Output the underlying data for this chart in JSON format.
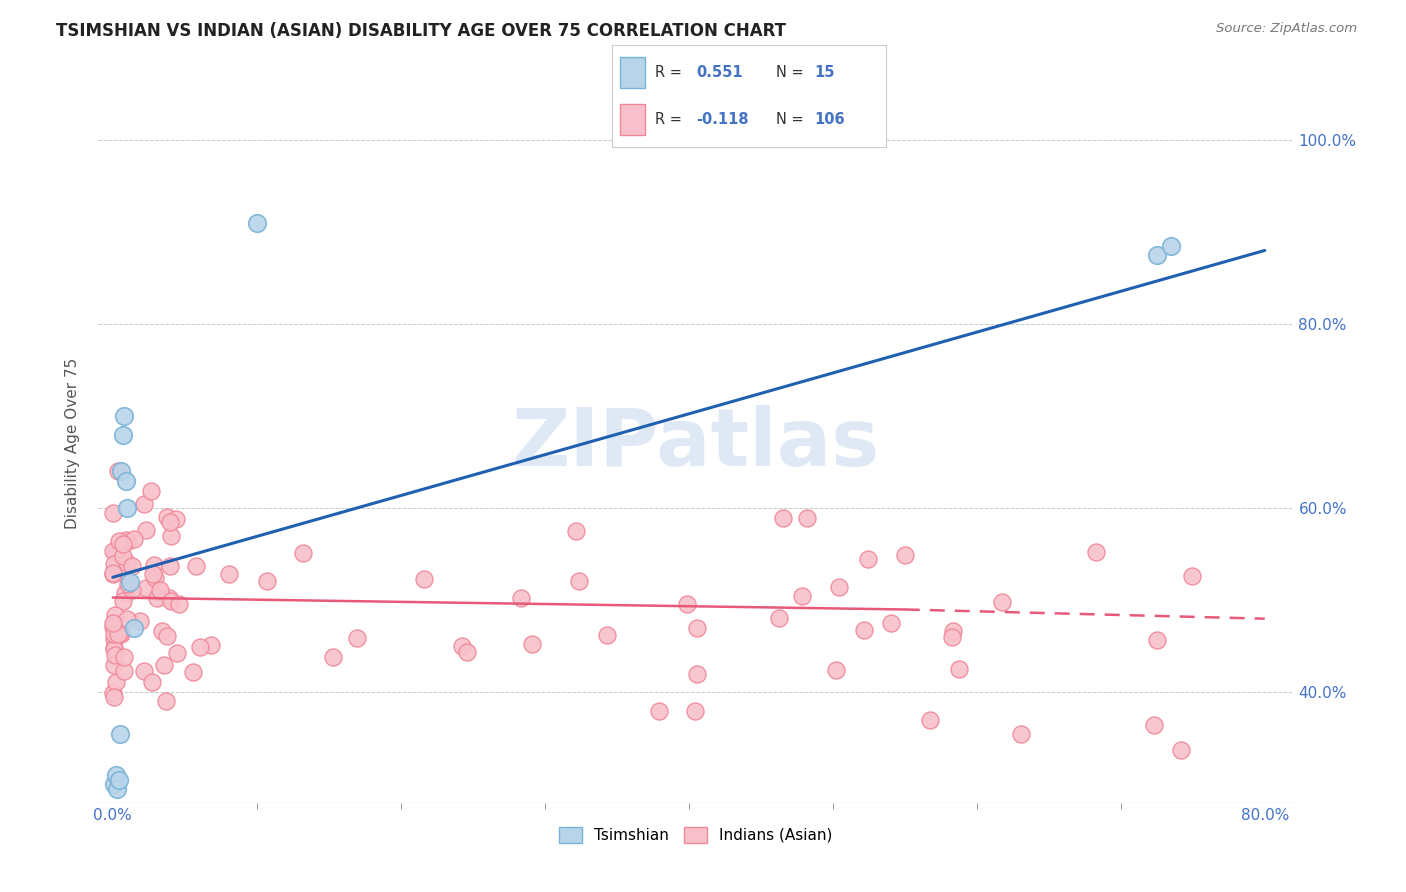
{
  "title": "TSIMSHIAN VS INDIAN (ASIAN) DISABILITY AGE OVER 75 CORRELATION CHART",
  "source": "Source: ZipAtlas.com",
  "ylabel": "Disability Age Over 75",
  "watermark": "ZIPatlas",
  "tsimshian_R": 0.551,
  "tsimshian_N": 15,
  "indian_R": -0.118,
  "indian_N": 106,
  "tsimshian_color": "#7ab3d8",
  "tsimshian_fill": "#b8d4ea",
  "indian_color": "#f08898",
  "indian_fill": "#f8c0ca",
  "line_blue": "#2060b0",
  "line_pink": "#e85878",
  "bg_color": "#ffffff",
  "grid_color": "#bbbbbb",
  "title_color": "#222222",
  "legend_text_color": "#4472c4",
  "xlim": [
    -0.01,
    0.82
  ],
  "ylim": [
    0.28,
    1.06
  ],
  "x_tick_positions": [
    0.0,
    0.8
  ],
  "x_tick_labels": [
    "0.0%",
    "80.0%"
  ],
  "y_tick_positions": [
    0.4,
    0.6,
    0.8,
    1.0
  ],
  "y_tick_labels": [
    "40.0%",
    "60.0%",
    "80.0%",
    "100.0%"
  ]
}
